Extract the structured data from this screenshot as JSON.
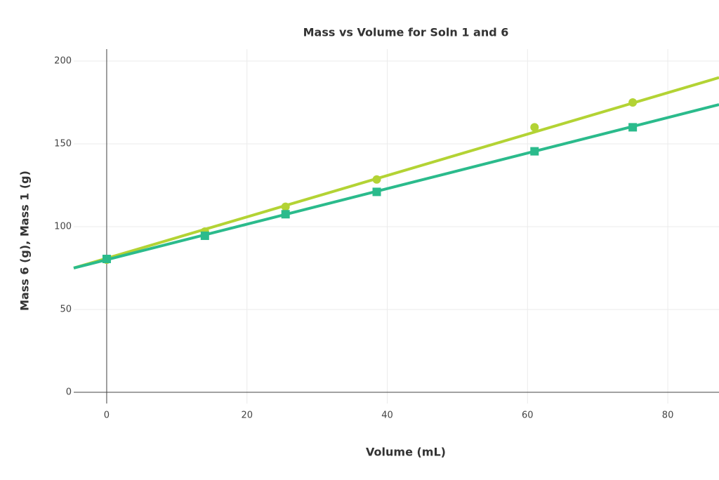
{
  "chart_data": {
    "type": "scatter",
    "title": "Mass vs Volume for Soln 1 and 6",
    "x_label": "Volume (mL)",
    "y_label": "Mass 6 (g), Mass 1 (g)",
    "xlim": [
      -4.7,
      87.3
    ],
    "ylim": [
      -6.8,
      207.2
    ],
    "xticks": [
      0,
      20,
      40,
      60,
      80
    ],
    "yticks": [
      0,
      50,
      100,
      150,
      200
    ],
    "grid": true,
    "series": [
      {
        "color": "#b3d334",
        "mode": "lines",
        "x": [
          -4.7,
          87.3
        ],
        "values": [
          75,
          190
        ]
      },
      {
        "color": "#2bbb8c",
        "mode": "lines",
        "x": [
          -4.7,
          87.3
        ],
        "values": [
          75,
          173.7
        ]
      },
      {
        "color": "#b3d334",
        "mode": "markers",
        "symbol": "circle",
        "x": [
          0,
          14,
          25.5,
          38.5,
          61,
          75
        ],
        "values": [
          80,
          97,
          112,
          128.5,
          160,
          175
        ]
      },
      {
        "color": "#2bbb8c",
        "mode": "markers",
        "symbol": "square",
        "x": [
          0,
          14,
          25.5,
          38.5,
          61,
          75
        ],
        "values": [
          80.5,
          94.5,
          107.5,
          121,
          145.5,
          160
        ]
      }
    ]
  }
}
